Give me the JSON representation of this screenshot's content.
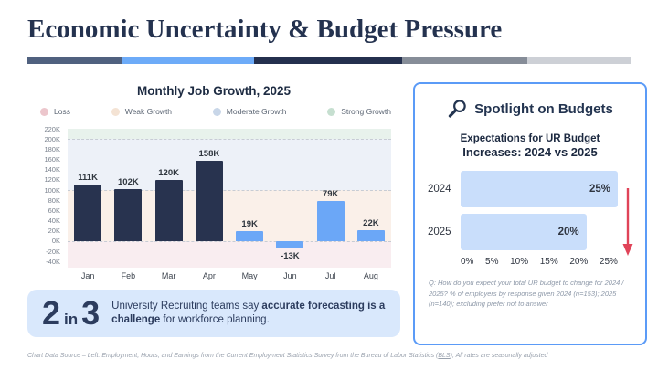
{
  "slide": {
    "title": "Economic Uncertainty & Budget Pressure"
  },
  "accent_bar": {
    "segments": [
      {
        "color": "#50617f",
        "width": 15.6
      },
      {
        "color": "#6dabf8",
        "width": 22.0
      },
      {
        "color": "#24304e",
        "width": 24.5
      },
      {
        "color": "#868d98",
        "width": 20.8
      },
      {
        "color": "#cdd0d6",
        "width": 17.1
      }
    ]
  },
  "callout": {
    "stat_first": "2",
    "stat_connector": "in",
    "stat_second": "3",
    "text_parts": [
      {
        "text": "University Recruiting teams say ",
        "bold": false
      },
      {
        "text": "accurate forecasting is a challenge",
        "bold": true
      },
      {
        "text": " for workforce planning.",
        "bold": false
      }
    ]
  },
  "spotlight": {
    "title": "Spotlight on Budgets",
    "subtitle_line1": "Expectations for UR Budget",
    "subtitle_line2": "Increases: 2024 vs 2025",
    "footnote": "Q: How do you expect your total UR budget to change for 2024 / 2025? % of employers by response given 2024 (n=153); 2025 (n=140); excluding prefer not to answer"
  },
  "footer": {
    "prefix": "Chart Data Source – Left: Employment, Hours, and Earnings from the Current Employment Statistics Survey from the Bureau of Labor Statistics (",
    "link_text": "BLS",
    "suffix": "); All rates are seasonally adjusted"
  },
  "chart_data": [
    {
      "type": "bar",
      "title": "Monthly Job Growth, 2025",
      "categories": [
        "Jan",
        "Feb",
        "Mar",
        "Apr",
        "May",
        "Jun",
        "Jul",
        "Aug"
      ],
      "values": [
        111,
        102,
        120,
        158,
        19,
        -13,
        79,
        22
      ],
      "value_labels": [
        "111K",
        "102K",
        "120K",
        "158K",
        "19K",
        "-13K",
        "79K",
        "22K"
      ],
      "unit": "K",
      "ylim": [
        -40,
        220
      ],
      "ytick_step": 20,
      "grid": "dashed horizontal at 0, 100K, 200K",
      "gridlines": [
        200,
        100,
        0
      ],
      "bar_colors": [
        "#28334f",
        "#28334f",
        "#28334f",
        "#28334f",
        "#6ba7f7",
        "#6ba7f7",
        "#6ba7f7",
        "#6ba7f7"
      ],
      "bands": [
        {
          "name": "Strong Growth",
          "from": 200,
          "to": 220,
          "color": "#e8f2ec"
        },
        {
          "name": "Moderate Growth",
          "from": 100,
          "to": 200,
          "color": "#edf1f8"
        },
        {
          "name": "Weak Growth",
          "from": 0,
          "to": 100,
          "color": "#faf0e9"
        },
        {
          "name": "Loss",
          "from": -52,
          "to": 0,
          "color": "#f9edf0"
        }
      ],
      "legend": [
        {
          "label": "Loss",
          "color": "#ecc6cc"
        },
        {
          "label": "Weak Growth",
          "color": "#f4e3d4"
        },
        {
          "label": "Moderate Growth",
          "color": "#c8d6e8"
        },
        {
          "label": "Strong Growth",
          "color": "#c6dfd0"
        }
      ],
      "legend_position": "top"
    },
    {
      "type": "bar-horizontal",
      "title": "Expectations for UR Budget Increases: 2024 vs 2025",
      "categories": [
        "2024",
        "2025"
      ],
      "values": [
        25,
        20
      ],
      "value_labels": [
        "25%",
        "20%"
      ],
      "xlim": [
        0,
        25
      ],
      "xticks": [
        "0%",
        "5%",
        "10%",
        "15%",
        "20%",
        "25%"
      ],
      "bar_color": "#c9defb",
      "trend_arrow": "down",
      "arrow_color": "#e04358"
    }
  ]
}
